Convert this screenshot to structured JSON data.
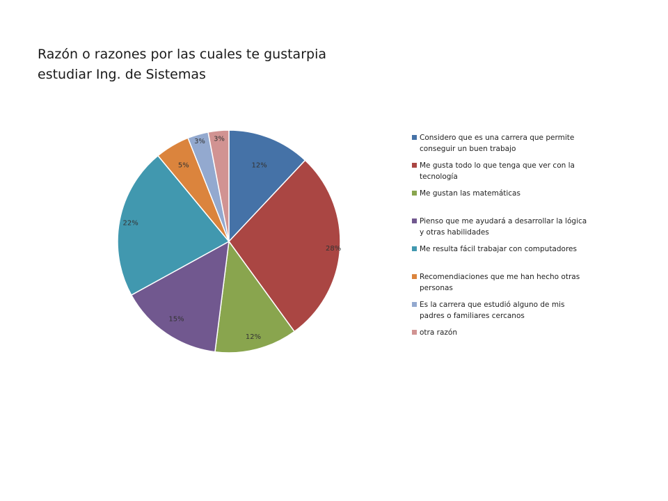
{
  "title_lines": [
    "Razón o razones por las cuales te gustarpia",
    "estudiar Ing. de Sistemas"
  ],
  "chart_data": {
    "type": "pie",
    "title": "Razón o razones por las cuales te gustarpia estudiar Ing. de Sistemas",
    "legend_position": "right",
    "categories": [
      "Considero que es una carrera que permite conseguir un buen trabajo",
      "Me gusta todo lo que tenga que ver con la tecnología",
      "Me gustan las matemáticas",
      "Pienso que me ayudará a desarrollar la lógica y otras habilidades",
      "Me resulta fácil trabajar con computadores",
      "Recomendiaciones que me han hecho otras personas",
      "Es la carrera que estudió alguno de mis padres o familiares cercanos",
      "otra razón"
    ],
    "legend_labels": [
      [
        "Considero que es una carrera que permite",
        "conseguir un buen trabajo"
      ],
      [
        "Me gusta todo lo que tenga que ver con la",
        "tecnología"
      ],
      [
        "Me gustan las matemáticas"
      ],
      [
        "Pienso que me ayudará a desarrollar la lógica",
        "y otras habilidades"
      ],
      [
        "Me resulta fácil trabajar con computadores"
      ],
      [
        "Recomendiaciones que me han hecho otras",
        "personas"
      ],
      [
        "Es la carrera que estudió alguno de mis",
        "padres o familiares cercanos"
      ],
      [
        "otra razón"
      ]
    ],
    "values": [
      12,
      28,
      12,
      15,
      22,
      5,
      3,
      3
    ],
    "data_labels": [
      "12%",
      "28%",
      "12%",
      "15%",
      "22%",
      "5%",
      "3%",
      "3%"
    ],
    "colors": [
      "#4572a7",
      "#aa4643",
      "#89a54e",
      "#71588f",
      "#4198af",
      "#db843d",
      "#93a9cf",
      "#d19392"
    ]
  }
}
